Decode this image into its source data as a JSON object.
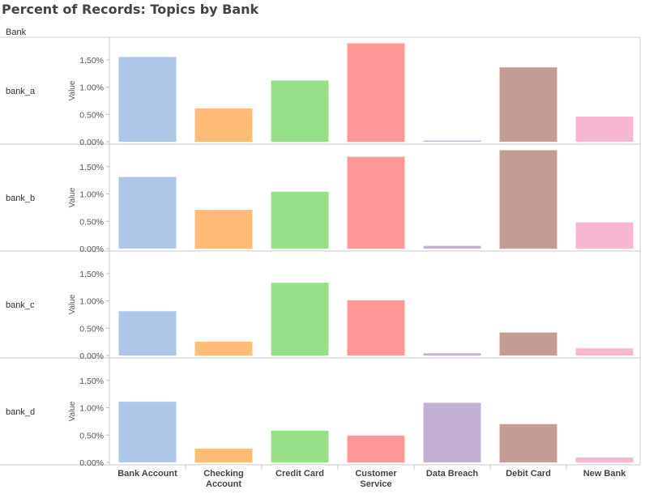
{
  "title": "Percent of Records: Topics by Bank",
  "row_header": "Bank",
  "chart_data": {
    "type": "bar",
    "title": "Percent of Records: Topics by Bank",
    "ylabel": "Value",
    "ylim": [
      0,
      1.8
    ],
    "yticks": [
      "0.00%",
      "0.50%",
      "1.00%",
      "1.50%"
    ],
    "ytick_values": [
      0,
      0.5,
      1.0,
      1.5
    ],
    "grid": false,
    "categories": [
      "Bank Account",
      "Checking Account",
      "Credit Card",
      "Customer Service",
      "Data Breach",
      "Debit Card",
      "New Bank"
    ],
    "category_labels": [
      [
        "Bank Account"
      ],
      [
        "Checking",
        "Account"
      ],
      [
        "Credit Card"
      ],
      [
        "Customer",
        "Service"
      ],
      [
        "Data Breach"
      ],
      [
        "Debit Card"
      ],
      [
        "New Bank"
      ]
    ],
    "colors": [
      "#aec7e8",
      "#ffbb78",
      "#98df8a",
      "#ff9896",
      "#c5b0d5",
      "#c49c94",
      "#f7b6d2"
    ],
    "series": [
      {
        "name": "bank_a",
        "values": [
          1.55,
          0.61,
          1.12,
          1.88,
          0.02,
          1.36,
          0.46
        ]
      },
      {
        "name": "bank_b",
        "values": [
          1.31,
          0.71,
          1.04,
          1.68,
          0.05,
          1.82,
          0.48
        ]
      },
      {
        "name": "bank_c",
        "values": [
          0.81,
          0.25,
          1.33,
          1.01,
          0.04,
          0.42,
          0.13
        ]
      },
      {
        "name": "bank_d",
        "values": [
          1.11,
          0.25,
          0.58,
          0.49,
          1.09,
          0.7,
          0.09
        ]
      }
    ]
  }
}
